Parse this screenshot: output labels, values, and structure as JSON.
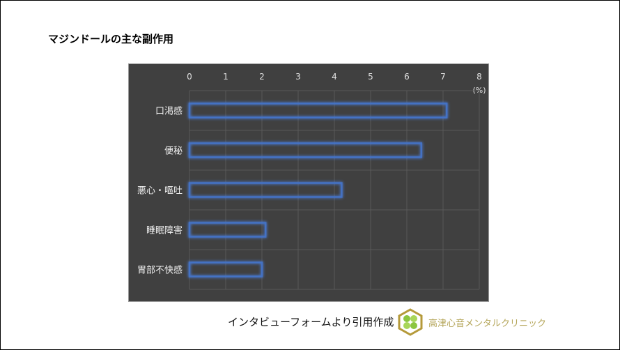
{
  "title": "マジンドールの主な副作用",
  "credit": "インタビューフォームより引用作成",
  "clinic_name": "高津心音メンタルクリニック",
  "chart_data": {
    "type": "bar",
    "orientation": "horizontal",
    "categories": [
      "口渇感",
      "便秘",
      "悪心・嘔吐",
      "睡眠障害",
      "胃部不快感"
    ],
    "values": [
      7.1,
      6.4,
      4.2,
      2.1,
      2.0
    ],
    "title": "マジンドールの主な副作用",
    "unit_label": "(%)",
    "xlim": [
      0,
      8
    ],
    "xticks": [
      "0",
      "1",
      "2",
      "3",
      "4",
      "5",
      "6",
      "7",
      "8"
    ],
    "grid": true,
    "background": "#404040",
    "bar_outline_color": "#4472c4"
  }
}
